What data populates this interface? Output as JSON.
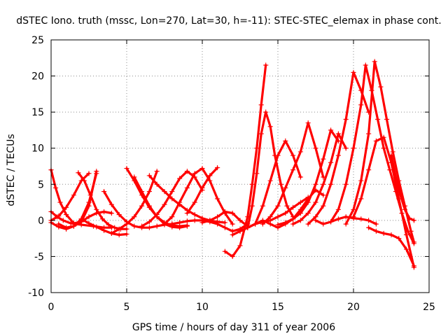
{
  "chart_data": {
    "type": "scatter",
    "title": "dSTEC Iono. truth (mssc, Lon=270, Lat=30, h=-11): STEC-STEC_elemax in phase cont.",
    "xlabel": "GPS time / hours of day 311 of year 2006",
    "ylabel": "dSTEC  / TECUs",
    "xlim": [
      0,
      25
    ],
    "ylim": [
      -10,
      25
    ],
    "xticks": [
      0,
      5,
      10,
      15,
      20,
      25
    ],
    "yticks": [
      -10,
      -5,
      0,
      5,
      10,
      15,
      20,
      25
    ],
    "grid": true,
    "marker": "+",
    "color": "#ff0000",
    "series": [
      {
        "x": [
          0.0,
          0.3,
          0.6,
          1.0,
          1.5,
          2.0,
          2.5,
          3.0
        ],
        "y": [
          7.0,
          4.5,
          2.5,
          0.8,
          -0.4,
          -0.2,
          2.0,
          6.8
        ]
      },
      {
        "x": [
          0.0,
          0.5,
          1.0,
          1.5,
          2.0,
          2.5,
          3.0
        ],
        "y": [
          -0.3,
          -0.9,
          -1.2,
          -0.8,
          0.2,
          2.5,
          6.5
        ]
      },
      {
        "x": [
          0.0,
          0.4,
          0.8,
          1.3,
          2.0,
          2.8,
          3.5,
          4.0
        ],
        "y": [
          1.2,
          0.5,
          0.0,
          -0.4,
          -0.6,
          -0.8,
          -1.0,
          -1.0
        ]
      },
      {
        "x": [
          0.0,
          0.5,
          1.0,
          1.5,
          2.0,
          2.5
        ],
        "y": [
          0.0,
          0.6,
          1.8,
          3.5,
          5.5,
          6.5
        ]
      },
      {
        "x": [
          1.8,
          2.2,
          2.6,
          3.0,
          3.4,
          3.8,
          4.2,
          4.6,
          5.0
        ],
        "y": [
          6.6,
          5.5,
          3.5,
          1.5,
          0.2,
          -0.6,
          -1.0,
          -1.2,
          -1.2
        ]
      },
      {
        "x": [
          0.5,
          1.0,
          1.5,
          2.0,
          2.5,
          3.0,
          3.5,
          4.0
        ],
        "y": [
          -0.5,
          -1.0,
          -0.8,
          -0.2,
          0.5,
          1.0,
          1.2,
          1.0
        ]
      },
      {
        "x": [
          2.0,
          2.5,
          3.0,
          3.5,
          4.0,
          4.5,
          5.0
        ],
        "y": [
          0.2,
          -0.4,
          -0.9,
          -1.4,
          -1.8,
          -2.0,
          -1.9
        ]
      },
      {
        "x": [
          3.5,
          4.0,
          4.5,
          5.0,
          5.5,
          6.0,
          6.5,
          7.0,
          7.5,
          8.0
        ],
        "y": [
          4.0,
          2.2,
          0.8,
          -0.2,
          -0.8,
          -1.0,
          -1.0,
          -0.8,
          -0.6,
          -0.5
        ]
      },
      {
        "x": [
          4.0,
          4.5,
          5.0,
          5.5,
          6.0,
          6.5,
          7.0
        ],
        "y": [
          -1.8,
          -1.2,
          -0.5,
          0.5,
          2.0,
          4.0,
          6.8
        ]
      },
      {
        "x": [
          5.0,
          5.5,
          6.0,
          6.5,
          7.0,
          7.5,
          8.0,
          8.5,
          9.0
        ],
        "y": [
          7.2,
          5.5,
          3.5,
          1.8,
          0.5,
          -0.3,
          -0.7,
          -0.8,
          -0.7
        ]
      },
      {
        "x": [
          5.5,
          6.0,
          6.5,
          7.0,
          7.5,
          8.0,
          8.5,
          9.0
        ],
        "y": [
          6.0,
          4.0,
          2.0,
          0.5,
          -0.5,
          -0.9,
          -1.0,
          -0.8
        ]
      },
      {
        "x": [
          6.0,
          6.5,
          7.0,
          7.5,
          8.0,
          8.5,
          9.0,
          9.5,
          10.0
        ],
        "y": [
          -0.8,
          -0.2,
          0.8,
          2.2,
          4.0,
          5.8,
          6.8,
          6.0,
          4.2
        ]
      },
      {
        "x": [
          6.5,
          7.0,
          7.5,
          8.0,
          8.5,
          9.0,
          9.5,
          10.0,
          10.5,
          11.0,
          11.5
        ],
        "y": [
          6.2,
          5.0,
          4.0,
          3.0,
          2.2,
          1.4,
          0.8,
          0.3,
          0.0,
          -0.2,
          -0.3
        ]
      },
      {
        "x": [
          7.5,
          8.0,
          8.5,
          9.0,
          9.5,
          10.0,
          10.5,
          11.0,
          11.5,
          12.0
        ],
        "y": [
          -0.5,
          0.5,
          2.5,
          4.5,
          6.5,
          7.2,
          5.5,
          3.0,
          1.0,
          -0.5
        ]
      },
      {
        "x": [
          8.0,
          8.5,
          9.0,
          9.5,
          10.0,
          10.5,
          11.0,
          11.5,
          12.0,
          12.5,
          13.0
        ],
        "y": [
          -0.5,
          -0.3,
          -0.1,
          0.0,
          0.0,
          -0.2,
          -0.5,
          -1.0,
          -1.5,
          -1.2,
          -0.5
        ]
      },
      {
        "x": [
          9.0,
          9.5,
          10.0,
          10.5,
          11.0
        ],
        "y": [
          1.0,
          2.5,
          4.5,
          6.2,
          7.3
        ]
      },
      {
        "x": [
          10.0,
          10.5,
          11.0,
          11.5,
          12.0,
          12.5,
          13.0
        ],
        "y": [
          -0.3,
          0.0,
          0.5,
          1.2,
          1.0,
          0.0,
          -0.8
        ]
      },
      {
        "x": [
          11.5,
          12.0,
          12.5,
          13.0,
          13.3,
          13.6,
          13.9,
          14.2
        ],
        "y": [
          -4.3,
          -5.0,
          -3.5,
          0.5,
          5.0,
          10.0,
          16.0,
          21.5
        ]
      },
      {
        "x": [
          12.0,
          12.5,
          13.0,
          13.5,
          14.0,
          14.5,
          15.0,
          15.5,
          16.0,
          16.5,
          17.0
        ],
        "y": [
          -2.0,
          -1.5,
          -1.0,
          -0.5,
          -0.2,
          0.0,
          0.5,
          1.0,
          1.8,
          2.5,
          3.2
        ]
      },
      {
        "x": [
          12.5,
          13.0,
          13.5,
          14.0,
          14.5,
          15.0,
          15.5,
          16.0,
          16.5,
          17.0,
          17.5,
          18.0
        ],
        "y": [
          -1.5,
          -1.0,
          -0.5,
          0.0,
          -0.5,
          -1.0,
          -0.5,
          0.2,
          1.5,
          3.0,
          4.2,
          3.5
        ]
      },
      {
        "x": [
          13.0,
          13.3,
          13.6,
          13.9,
          14.2,
          14.5,
          14.8,
          15.2,
          15.6,
          16.0
        ],
        "y": [
          -1.0,
          2.0,
          6.5,
          12.0,
          15.0,
          13.0,
          9.0,
          5.0,
          2.0,
          0.5
        ]
      },
      {
        "x": [
          13.5,
          14.0,
          14.5,
          15.0,
          15.5,
          16.0,
          16.5
        ],
        "y": [
          -0.5,
          2.0,
          5.5,
          9.0,
          11.0,
          9.0,
          6.0
        ]
      },
      {
        "x": [
          14.0,
          14.5,
          15.0,
          15.5,
          16.0,
          16.5,
          17.0,
          17.5,
          18.0
        ],
        "y": [
          -0.5,
          0.5,
          2.0,
          4.5,
          7.0,
          9.5,
          13.5,
          10.0,
          6.0
        ]
      },
      {
        "x": [
          15.0,
          15.5,
          16.0,
          16.5,
          17.0,
          17.5,
          18.0,
          18.5,
          19.0
        ],
        "y": [
          -0.6,
          -0.3,
          0.2,
          1.0,
          2.5,
          5.0,
          8.5,
          12.5,
          11.0
        ]
      },
      {
        "x": [
          16.0,
          16.5,
          17.0,
          17.5,
          18.0,
          18.5,
          19.0,
          19.5
        ],
        "y": [
          -0.5,
          0.0,
          1.0,
          2.5,
          5.0,
          8.0,
          12.0,
          10.0
        ]
      },
      {
        "x": [
          17.0,
          17.5,
          18.0,
          18.5,
          19.0,
          19.5,
          20.0,
          20.5,
          21.0
        ],
        "y": [
          -0.5,
          0.5,
          2.0,
          5.0,
          9.0,
          14.0,
          20.5,
          18.0,
          15.0
        ]
      },
      {
        "x": [
          17.5,
          18.0,
          18.5,
          19.0,
          19.5,
          20.0,
          20.5,
          21.0,
          21.5
        ],
        "y": [
          0.0,
          -0.5,
          -0.2,
          0.2,
          0.5,
          0.3,
          0.2,
          0.0,
          -0.5
        ]
      },
      {
        "x": [
          18.5,
          19.0,
          19.5,
          20.0,
          20.5,
          20.8,
          21.2,
          21.6,
          22.0,
          22.4,
          22.8,
          23.2,
          23.6,
          24.0
        ],
        "y": [
          -0.2,
          1.5,
          5.0,
          10.0,
          16.0,
          21.5,
          18.0,
          14.0,
          10.0,
          7.0,
          4.0,
          1.0,
          -1.5,
          -3.2
        ]
      },
      {
        "x": [
          19.5,
          20.0,
          20.5,
          21.0,
          21.4,
          21.8,
          22.2,
          22.6,
          23.0,
          23.4,
          23.8,
          24.0
        ],
        "y": [
          -0.5,
          1.5,
          5.5,
          12.0,
          22.0,
          18.5,
          14.0,
          9.5,
          5.5,
          2.0,
          -1.5,
          -3.0
        ]
      },
      {
        "x": [
          20.0,
          20.5,
          21.0,
          21.5,
          22.0,
          22.5,
          23.0,
          23.5,
          24.0
        ],
        "y": [
          0.5,
          3.0,
          7.0,
          11.0,
          11.5,
          8.0,
          3.0,
          -2.0,
          -6.5
        ]
      },
      {
        "x": [
          21.0,
          21.5,
          22.0,
          22.5,
          23.0,
          23.5,
          24.0
        ],
        "y": [
          -1.0,
          -1.5,
          -1.8,
          -2.0,
          -2.5,
          -4.0,
          -6.3
        ]
      },
      {
        "x": [
          22.5,
          22.8,
          23.1,
          23.4,
          23.7,
          24.0
        ],
        "y": [
          9.0,
          6.0,
          3.5,
          1.5,
          0.3,
          0.0
        ]
      }
    ]
  }
}
